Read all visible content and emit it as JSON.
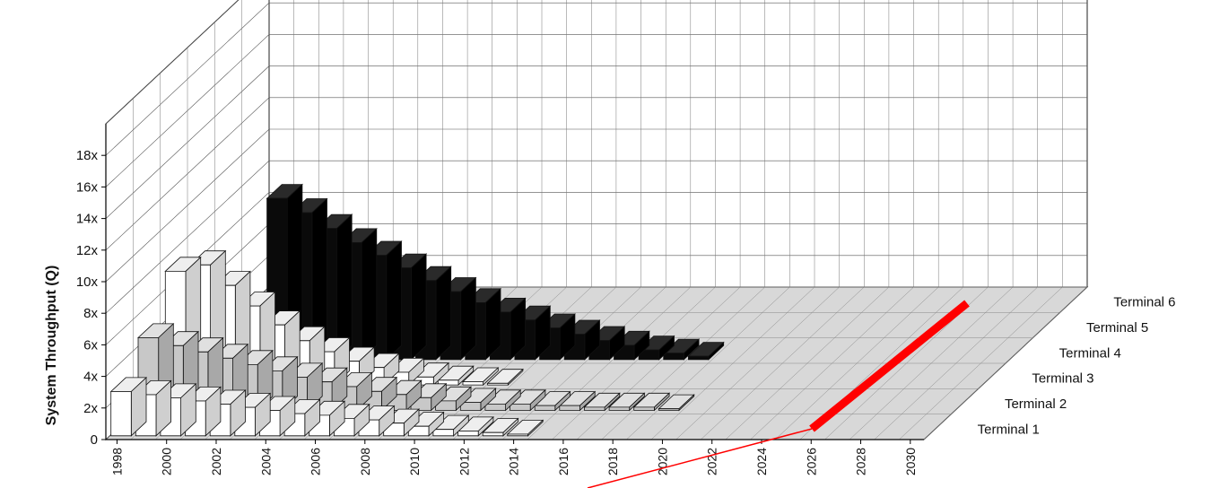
{
  "chart_data": {
    "type": "bar",
    "style": "3d-grouped-depth",
    "title": "",
    "xlabel": "",
    "ylabel": "System Throughput (Q)",
    "ylim": [
      0,
      20
    ],
    "y_ticks": [
      {
        "value": 0,
        "label": "0"
      },
      {
        "value": 2,
        "label": "2x"
      },
      {
        "value": 4,
        "label": "4x"
      },
      {
        "value": 6,
        "label": "6x"
      },
      {
        "value": 8,
        "label": "8x"
      },
      {
        "value": 10,
        "label": "10x"
      },
      {
        "value": 12,
        "label": "12x"
      },
      {
        "value": 14,
        "label": "14x"
      },
      {
        "value": 16,
        "label": "16x"
      },
      {
        "value": 18,
        "label": "18x"
      }
    ],
    "x_tick_labels": [
      "1998",
      "2000",
      "2002",
      "2004",
      "2006",
      "2008",
      "2010",
      "2012",
      "2014",
      "2016",
      "2018",
      "2020",
      "2022",
      "2024",
      "2026",
      "2028",
      "2030"
    ],
    "categories": [
      "1998",
      "1999",
      "2000",
      "2001",
      "2002",
      "2003",
      "2004",
      "2005",
      "2006",
      "2007",
      "2008",
      "2009",
      "2010",
      "2011",
      "2012",
      "2013",
      "2014",
      "2015",
      "2016",
      "2017",
      "2018",
      "2019",
      "2020",
      "2021",
      "2022",
      "2023",
      "2024",
      "2025",
      "2026",
      "2027",
      "2028",
      "2029",
      "2030"
    ],
    "series": [
      {
        "name": "Terminal 1",
        "fill": "#ffffff",
        "values": [
          2.8,
          2.6,
          2.4,
          2.2,
          2.0,
          1.8,
          1.6,
          1.4,
          1.3,
          1.1,
          1.0,
          0.8,
          0.6,
          0.4,
          0.3,
          0.2,
          0.1,
          0,
          0,
          0,
          0,
          0,
          0,
          0,
          0,
          0,
          0,
          0,
          0,
          0,
          0,
          0,
          0
        ]
      },
      {
        "name": "Terminal 2",
        "fill": "#c8c8c8",
        "values": [
          4.6,
          4.1,
          3.7,
          3.3,
          2.9,
          2.5,
          2.1,
          1.8,
          1.5,
          1.2,
          1.0,
          0.8,
          0.6,
          0.5,
          0.4,
          0.4,
          0.3,
          0.3,
          0.2,
          0.2,
          0.2,
          0.1,
          0,
          0,
          0,
          0,
          0,
          0,
          0,
          0,
          0,
          0,
          0
        ]
      },
      {
        "name": "Terminal 3",
        "fill": "#ffffff",
        "values": [
          7.2,
          7.6,
          6.3,
          5.0,
          3.8,
          2.8,
          2.1,
          1.5,
          1.1,
          0.8,
          0.5,
          0.3,
          0.2,
          0.1,
          0,
          0,
          0,
          0,
          0,
          0,
          0,
          0,
          0,
          0,
          0,
          0,
          0,
          0,
          0,
          0,
          0,
          0,
          0
        ]
      },
      {
        "name": "Terminal 4",
        "fill": "#0a0a0a",
        "values": [
          0,
          0,
          0,
          10.2,
          9.3,
          8.3,
          7.4,
          6.6,
          5.8,
          5.0,
          4.3,
          3.6,
          3.0,
          2.5,
          2.0,
          1.6,
          1.2,
          0.9,
          0.6,
          0.4,
          0.2,
          0,
          0,
          0,
          0,
          0,
          0,
          0,
          0,
          0,
          0,
          0,
          0
        ]
      },
      {
        "name": "Terminal 5",
        "fill": "#0a0a0a",
        "values": [
          0,
          0,
          0,
          0,
          0,
          0,
          0,
          0,
          0,
          0,
          0,
          0,
          0,
          0,
          0,
          0,
          0,
          0,
          0,
          0,
          0,
          0,
          0,
          0,
          0,
          0,
          0,
          0,
          0,
          0,
          0,
          0,
          0
        ]
      },
      {
        "name": "Terminal 6",
        "fill": "#ffffff",
        "values": [
          0,
          0,
          0,
          0,
          0,
          0,
          0,
          0,
          0,
          0,
          0,
          0,
          0,
          0,
          0,
          0,
          0,
          0,
          0,
          0,
          0,
          0,
          0,
          0,
          0,
          0,
          0,
          0,
          0,
          0,
          0,
          0,
          0
        ]
      }
    ],
    "grid": true,
    "legend": "series labels along right depth edge",
    "annotation": {
      "type": "red-arrow",
      "color": "#ff0000",
      "points_to": "2026"
    }
  }
}
